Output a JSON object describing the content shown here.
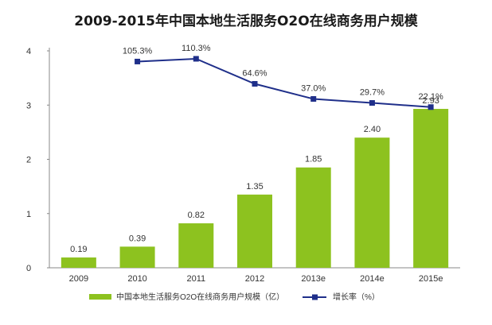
{
  "chart_data": {
    "type": "bar",
    "title": "2009-2015年中国本地生活服务O2O在线商务用户规模",
    "categories": [
      "2009",
      "2010",
      "2011",
      "2012",
      "2013e",
      "2014e",
      "2015e"
    ],
    "series": [
      {
        "name": "中国本地生活服务O2O在线商务用户规模（亿）",
        "type": "bar",
        "values": [
          0.19,
          0.39,
          0.82,
          1.35,
          1.85,
          2.4,
          2.93
        ],
        "labels": [
          "0.19",
          "0.39",
          "0.82",
          "1.35",
          "1.85",
          "2.40",
          "2.93"
        ],
        "color": "#8dc21f"
      },
      {
        "name": "增长率（%）",
        "type": "line",
        "values": [
          null,
          105.3,
          110.3,
          64.6,
          37.0,
          29.7,
          22.1
        ],
        "labels": [
          null,
          "105.3%",
          "110.3%",
          "64.6%",
          "37.0%",
          "29.7%",
          "22.1%"
        ],
        "color": "#1f2f8a"
      }
    ],
    "ylim": [
      0,
      4
    ],
    "yticks": [
      "0",
      "1",
      "2",
      "3",
      "4"
    ],
    "legend": "bottom",
    "grid": false
  }
}
